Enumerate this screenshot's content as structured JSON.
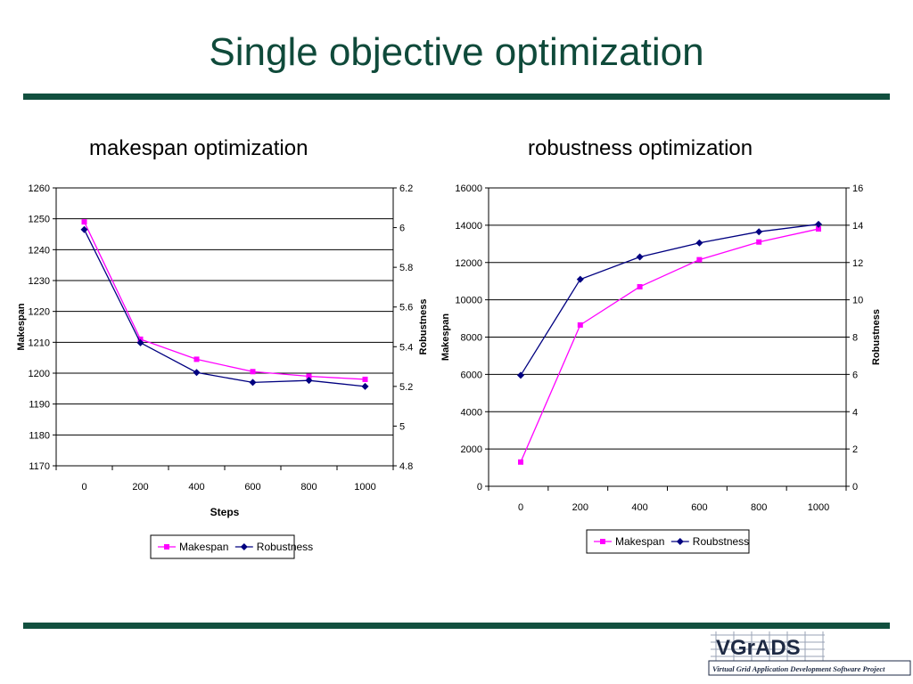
{
  "slide": {
    "title": "Single objective optimization",
    "subtitle_left": "makespan optimization",
    "subtitle_right": "robustness optimization",
    "logo_text": "VGrADS",
    "logo_caption": "Virtual Grid Application Development Software Project"
  },
  "colors": {
    "makespan": "#ff00ff",
    "robustness": "#000080",
    "rule": "#12503f",
    "title": "#0f4a3a"
  },
  "chart_data": [
    {
      "type": "line",
      "x": [
        0,
        200,
        400,
        600,
        800,
        1000
      ],
      "x_ticks": [
        "0",
        "200",
        "400",
        "600",
        "800",
        "1000"
      ],
      "xlabel": "Steps",
      "ylabel": "Makespan",
      "y2label": "Robustness",
      "ylim": [
        1170,
        1260
      ],
      "y_ticks": [
        "1170",
        "1180",
        "1190",
        "1200",
        "1210",
        "1220",
        "1230",
        "1240",
        "1250",
        "1260"
      ],
      "y2lim": [
        4.8,
        6.2
      ],
      "y2_ticks": [
        "4.8",
        "5",
        "5.2",
        "5.4",
        "5.6",
        "5.8",
        "6",
        "6.2"
      ],
      "grid": true,
      "legend_placement": "bottom",
      "series": [
        {
          "name": "Makespan",
          "axis": "left",
          "color": "#ff00ff",
          "marker": "square",
          "values": [
            1249,
            1211,
            1204.5,
            1200.5,
            1199,
            1198
          ]
        },
        {
          "name": "Robustness",
          "axis": "right",
          "color": "#000080",
          "marker": "diamond",
          "values": [
            5.99,
            5.42,
            5.27,
            5.22,
            5.23,
            5.2
          ]
        }
      ]
    },
    {
      "type": "line",
      "x": [
        0,
        200,
        400,
        600,
        800,
        1000
      ],
      "x_ticks": [
        "0",
        "200",
        "400",
        "600",
        "800",
        "1000"
      ],
      "xlabel": "",
      "ylabel": "Makespan",
      "y2label": "Robustness",
      "ylim": [
        0,
        16000
      ],
      "y_ticks": [
        "0",
        "2000",
        "4000",
        "6000",
        "8000",
        "10000",
        "12000",
        "14000",
        "16000"
      ],
      "y2lim": [
        0,
        16
      ],
      "y2_ticks": [
        "0",
        "2",
        "4",
        "6",
        "8",
        "10",
        "12",
        "14",
        "16"
      ],
      "grid": true,
      "legend_placement": "bottom",
      "series": [
        {
          "name": "Makespan",
          "axis": "left",
          "color": "#ff00ff",
          "marker": "square",
          "values": [
            1300,
            8650,
            10700,
            12150,
            13100,
            13800
          ]
        },
        {
          "name": "Roubstness",
          "axis": "right",
          "color": "#000080",
          "marker": "diamond",
          "values": [
            5.95,
            11.1,
            12.3,
            13.05,
            13.65,
            14.05
          ]
        }
      ]
    }
  ]
}
